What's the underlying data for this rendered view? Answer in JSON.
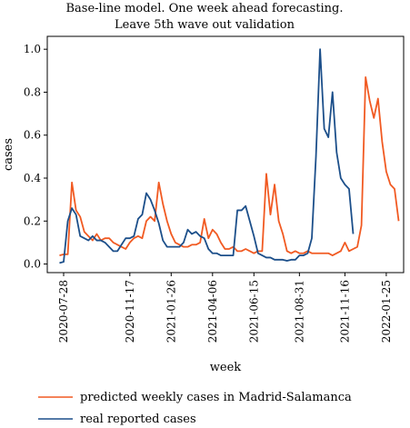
{
  "chart_data": {
    "type": "line",
    "title_line1": "Base-line model. One week ahead forecasting.",
    "title_line2": "Leave 5th wave out validation",
    "xlabel": "week",
    "ylabel": "cases",
    "ylim": [
      -0.04,
      1.06
    ],
    "yticks": [
      "0.0",
      "0.2",
      "0.4",
      "0.6",
      "0.8",
      "1.0"
    ],
    "ytick_values": [
      0.0,
      0.2,
      0.4,
      0.6,
      0.8,
      1.0
    ],
    "xticks": [
      "2020-07-28",
      "2020-11-17",
      "2021-01-26",
      "2021-04-06",
      "2021-06-15",
      "2021-08-31",
      "2021-11-16",
      "2022-01-25"
    ],
    "xtick_weeks": [
      0,
      16,
      26,
      36,
      46,
      57,
      68,
      78
    ],
    "grid": false,
    "legend_position": "bottom",
    "series": [
      {
        "name": "predicted weekly cases in Madrid-Salamanca",
        "color": "#f15a22",
        "x_start_week": -1,
        "values": [
          0.04,
          0.045,
          0.045,
          0.38,
          0.25,
          0.22,
          0.15,
          0.13,
          0.11,
          0.14,
          0.11,
          0.12,
          0.12,
          0.1,
          0.09,
          0.08,
          0.07,
          0.1,
          0.12,
          0.13,
          0.12,
          0.2,
          0.22,
          0.2,
          0.38,
          0.28,
          0.2,
          0.14,
          0.1,
          0.09,
          0.08,
          0.08,
          0.09,
          0.09,
          0.1,
          0.21,
          0.12,
          0.16,
          0.14,
          0.1,
          0.07,
          0.07,
          0.08,
          0.06,
          0.06,
          0.07,
          0.06,
          0.05,
          0.06,
          0.06,
          0.42,
          0.23,
          0.37,
          0.2,
          0.14,
          0.06,
          0.05,
          0.06,
          0.05,
          0.05,
          0.06,
          0.05,
          0.05,
          0.05,
          0.05,
          0.05,
          0.04,
          0.05,
          0.06,
          0.1,
          0.06,
          0.07,
          0.08,
          0.18,
          0.87,
          0.76,
          0.68,
          0.77,
          0.57,
          0.43,
          0.37,
          0.35,
          0.2
        ]
      },
      {
        "name": "real reported cases",
        "color": "#1c4f8a",
        "x_start_week": -1,
        "values": [
          0.005,
          0.01,
          0.2,
          0.26,
          0.23,
          0.13,
          0.12,
          0.11,
          0.13,
          0.11,
          0.11,
          0.1,
          0.08,
          0.06,
          0.06,
          0.09,
          0.12,
          0.12,
          0.13,
          0.21,
          0.23,
          0.33,
          0.3,
          0.25,
          0.19,
          0.11,
          0.08,
          0.08,
          0.08,
          0.08,
          0.1,
          0.16,
          0.14,
          0.15,
          0.13,
          0.12,
          0.07,
          0.05,
          0.05,
          0.04,
          0.04,
          0.04,
          0.04,
          0.25,
          0.25,
          0.27,
          0.2,
          0.13,
          0.05,
          0.04,
          0.03,
          0.03,
          0.02,
          0.02,
          0.02,
          0.015,
          0.02,
          0.02,
          0.04,
          0.04,
          0.05,
          0.12,
          0.5,
          1.0,
          0.63,
          0.59,
          0.8,
          0.52,
          0.4,
          0.37,
          0.35,
          0.14
        ]
      }
    ]
  }
}
